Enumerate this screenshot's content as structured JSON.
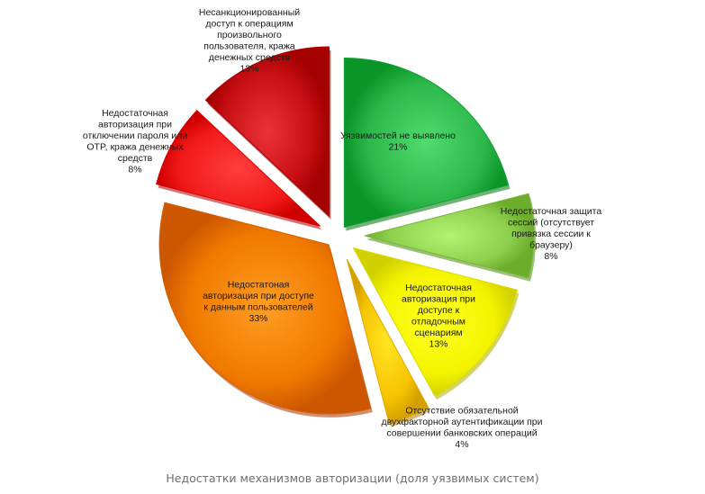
{
  "caption": "Недостатки механизмов авторизации (доля уязвимых систем)",
  "chart_data": {
    "type": "pie",
    "title": "Недостатки механизмов авторизации (доля уязвимых систем)",
    "unit": "%",
    "slices": [
      {
        "label_lines": [
          "Уязвимостей не выявлено"
        ],
        "value": 21,
        "value_text": "21%",
        "color": "#2db84c",
        "label_pos": "inside"
      },
      {
        "label_lines": [
          "Недостаточная защита",
          "сессий (отсутствует",
          "привязка сессии к",
          "браузеру)"
        ],
        "value": 8,
        "value_text": "8%",
        "color": "#8fd14f",
        "label_pos": "outside"
      },
      {
        "label_lines": [
          "Недостаточная",
          "авторизация при",
          "доступе к",
          "отладочным",
          "сценариям"
        ],
        "value": 13,
        "value_text": "13%",
        "color": "#f4f400",
        "label_pos": "inside"
      },
      {
        "label_lines": [
          "Отсутствие обязательной",
          "двухфакторной аутентификации при",
          "совершении банковских операций"
        ],
        "value": 4,
        "value_text": "4%",
        "color": "#f7c300",
        "label_pos": "outside"
      },
      {
        "label_lines": [
          "Недостатоная",
          "авторизация при доступе",
          "к данным пользователей"
        ],
        "value": 33,
        "value_text": "33%",
        "color": "#f07a00",
        "label_pos": "inside"
      },
      {
        "label_lines": [
          "Недостаточная",
          "авторизация при",
          "отключении пароля или",
          "OTP, кража денежных",
          "средств"
        ],
        "value": 8,
        "value_text": "8%",
        "color": "#f21a1a",
        "label_pos": "outside"
      },
      {
        "label_lines": [
          "Несанкционированный",
          "доступ к операциям",
          "произвольного",
          "пользователя, кража",
          "денежных средств"
        ],
        "value": 13,
        "value_text": "13%",
        "color": "#c70f14",
        "label_pos": "outside"
      }
    ]
  }
}
